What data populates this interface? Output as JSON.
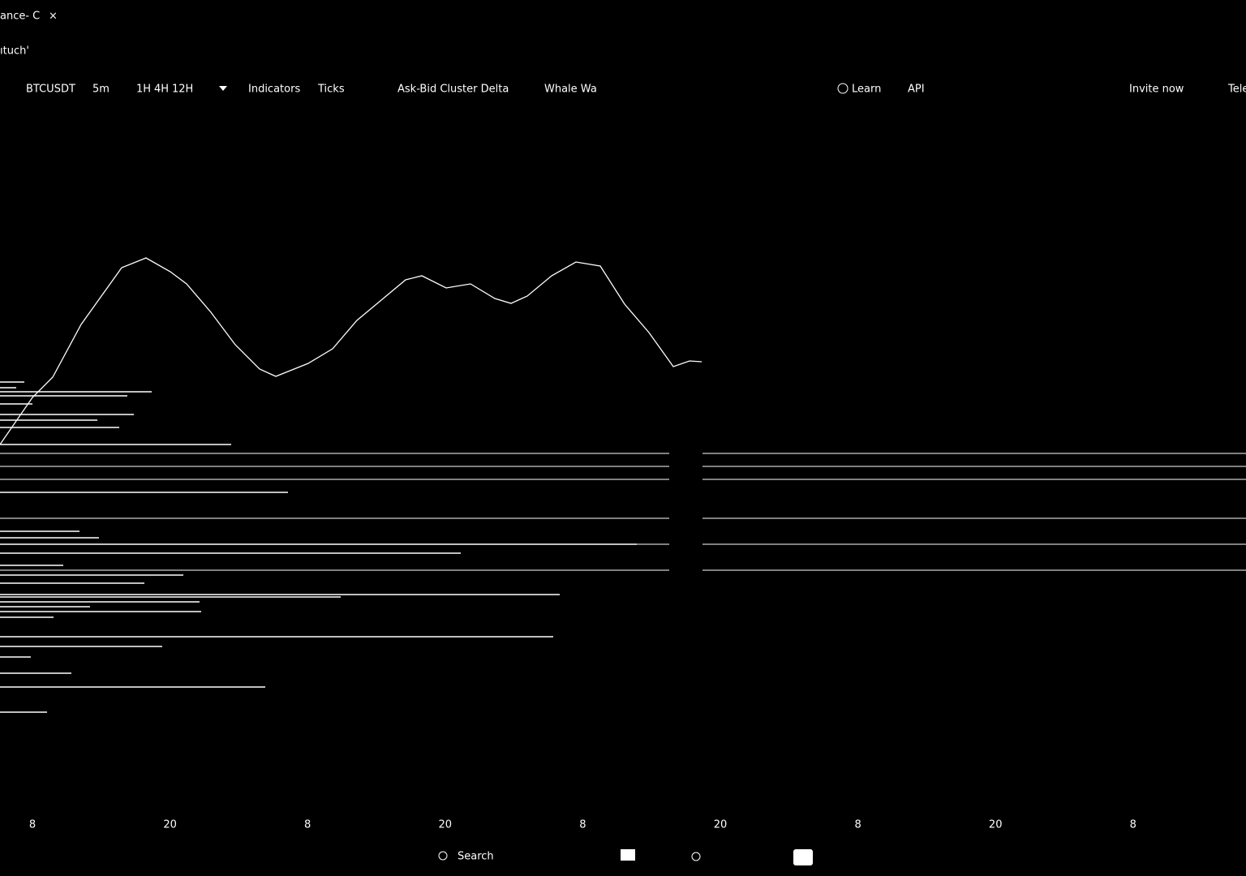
{
  "window": {
    "tab_title": "ance- C",
    "close": "×",
    "address": "ıtuch'"
  },
  "toolbar": {
    "symbol": "BTCUSDT",
    "intervals": [
      "5m",
      "1H",
      "4H",
      "12H"
    ],
    "indicators": "Indicators",
    "ticks": "Ticks",
    "cluster": "Ask-Bid Cluster Delta",
    "whale": "Whale Wa",
    "learn": "Learn",
    "api": "API",
    "invite": "Invite now",
    "tele": "Tele"
  },
  "time_axis": [
    "8",
    "20",
    "8",
    "20",
    "8",
    "20",
    "8",
    "20",
    "8"
  ],
  "taskbar": {
    "search": "Search"
  }
}
